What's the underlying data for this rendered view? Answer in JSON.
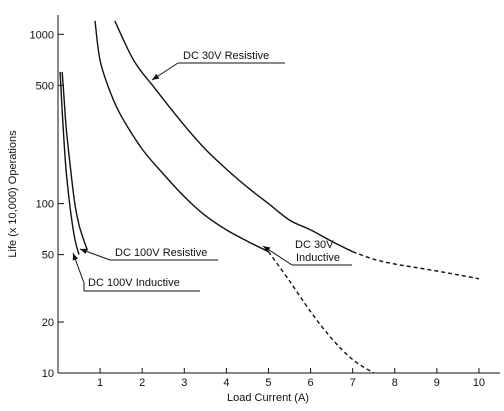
{
  "chart_data": {
    "type": "line",
    "title": "",
    "xlabel": "Load Current (A)",
    "ylabel": "Life (x 10,000) Operations",
    "xlim": [
      0,
      10.5
    ],
    "ylim": [
      10,
      1300
    ],
    "y_scale": "log",
    "grid": false,
    "x_ticks": [
      1,
      2,
      3,
      4,
      5,
      6,
      7,
      8,
      9,
      10
    ],
    "x_tick_labels": [
      "1",
      "2",
      "3",
      "4",
      "5",
      "6",
      "7",
      "8",
      "9",
      "10"
    ],
    "y_ticks": [
      10,
      20,
      50,
      100,
      500,
      1000
    ],
    "y_tick_labels": [
      "10",
      "20",
      "50",
      "100",
      "500",
      "1000"
    ],
    "series": [
      {
        "name": "DC 30V Resistive",
        "x": [
          1.35,
          1.8,
          2.3,
          3,
          3.5,
          4,
          4.5,
          5,
          5.5,
          6,
          6.5,
          7
        ],
        "y": [
          1200,
          700,
          480,
          290,
          210,
          160,
          125,
          100,
          80,
          70,
          60,
          52
        ],
        "dashed_x": [
          7,
          7.5,
          8,
          8.5,
          9,
          9.5,
          10
        ],
        "dashed_y": [
          52,
          47,
          44,
          42,
          40,
          38,
          36
        ]
      },
      {
        "name": "DC 30V Inductive",
        "x": [
          0.88,
          1,
          1.25,
          1.5,
          2,
          2.5,
          3,
          3.5,
          4,
          4.5,
          5
        ],
        "y": [
          1200,
          700,
          450,
          330,
          210,
          150,
          110,
          85,
          70,
          60,
          52
        ],
        "dashed_x": [
          5,
          5.5,
          6,
          6.5,
          7,
          7.5
        ],
        "dashed_y": [
          52,
          35,
          23,
          16,
          12,
          10
        ]
      },
      {
        "name": "DC 100V Resistive",
        "x": [
          0.1,
          0.15,
          0.2,
          0.3,
          0.4,
          0.5,
          0.6,
          0.7
        ],
        "y": [
          600,
          400,
          270,
          160,
          100,
          75,
          62,
          53
        ],
        "dashed_x": [],
        "dashed_y": []
      },
      {
        "name": "DC 100V Inductive",
        "x": [
          0.05,
          0.1,
          0.15,
          0.2,
          0.3,
          0.4,
          0.5
        ],
        "y": [
          600,
          350,
          220,
          150,
          90,
          62,
          50
        ],
        "dashed_x": [],
        "dashed_y": []
      }
    ],
    "annotations": [
      {
        "text": "DC 30V Resistive"
      },
      {
        "text": "DC 30V"
      },
      {
        "text": "Inductive"
      },
      {
        "text": "DC 100V Resistive"
      },
      {
        "text": "DC 100V Inductive"
      }
    ]
  }
}
